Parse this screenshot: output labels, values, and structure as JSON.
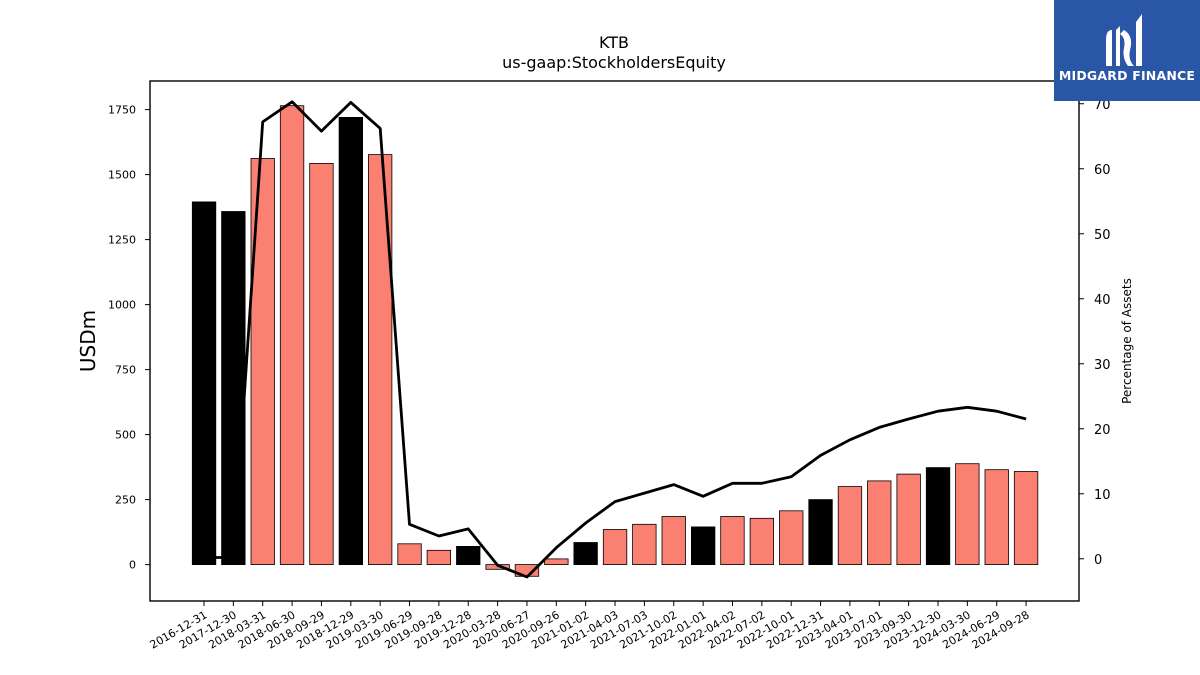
{
  "brand": {
    "name": "MIDGARD FINANCE",
    "bg_color": "#2a56a8"
  },
  "colors": {
    "bar_salmon": "#fa8072",
    "bar_black": "#000000",
    "line": "#000000"
  },
  "chart_data": {
    "type": "bar",
    "title": "KTB",
    "subtitle": "us-gaap:StockholdersEquity",
    "ylabel": "USDm",
    "y2label": "Percentage of Assets",
    "ylim": [
      -140,
      1860
    ],
    "y2lim": [
      -6.5,
      73.5
    ],
    "yticks": [
      0,
      250,
      500,
      750,
      1000,
      1250,
      1500,
      1750
    ],
    "y2ticks": [
      0,
      10,
      20,
      30,
      40,
      50,
      60,
      70
    ],
    "categories": [
      "2016-12-31",
      "2017-12-30",
      "2018-03-31",
      "2018-06-30",
      "2018-09-29",
      "2018-12-29",
      "2019-03-30",
      "2019-06-29",
      "2019-09-28",
      "2019-12-28",
      "2020-03-28",
      "2020-06-27",
      "2020-09-26",
      "2021-01-02",
      "2021-04-03",
      "2021-07-03",
      "2021-10-02",
      "2022-01-01",
      "2022-04-02",
      "2022-07-02",
      "2022-10-01",
      "2022-12-31",
      "2023-04-01",
      "2023-07-01",
      "2023-09-30",
      "2023-12-30",
      "2024-03-30",
      "2024-06-29",
      "2024-09-28"
    ],
    "series": [
      {
        "values": [
          1395,
          1358,
          1562,
          1765,
          1543,
          1720,
          1577,
          80,
          55,
          70,
          -18,
          -45,
          22,
          85,
          135,
          155,
          185,
          145,
          185,
          178,
          207,
          250,
          300,
          322,
          348,
          373,
          388,
          365,
          358
        ],
        "bar_colors": [
          "black",
          "black",
          "salmon",
          "salmon",
          "salmon",
          "black",
          "salmon",
          "salmon",
          "salmon",
          "black",
          "salmon",
          "salmon",
          "salmon",
          "black",
          "salmon",
          "salmon",
          "salmon",
          "black",
          "salmon",
          "salmon",
          "salmon",
          "black",
          "salmon",
          "salmon",
          "salmon",
          "black",
          "salmon",
          "salmon",
          "salmon"
        ]
      },
      {
        "axis": "right",
        "type": "line",
        "values": [
          0.2,
          0.2,
          67.2,
          70.3,
          65.8,
          70.2,
          66.2,
          5.3,
          3.5,
          4.6,
          -1.0,
          -2.8,
          1.7,
          5.5,
          8.8,
          10.1,
          11.4,
          9.6,
          11.6,
          11.6,
          12.6,
          15.9,
          18.3,
          20.2,
          21.5,
          22.7,
          23.3,
          22.7,
          21.5
        ]
      }
    ]
  }
}
